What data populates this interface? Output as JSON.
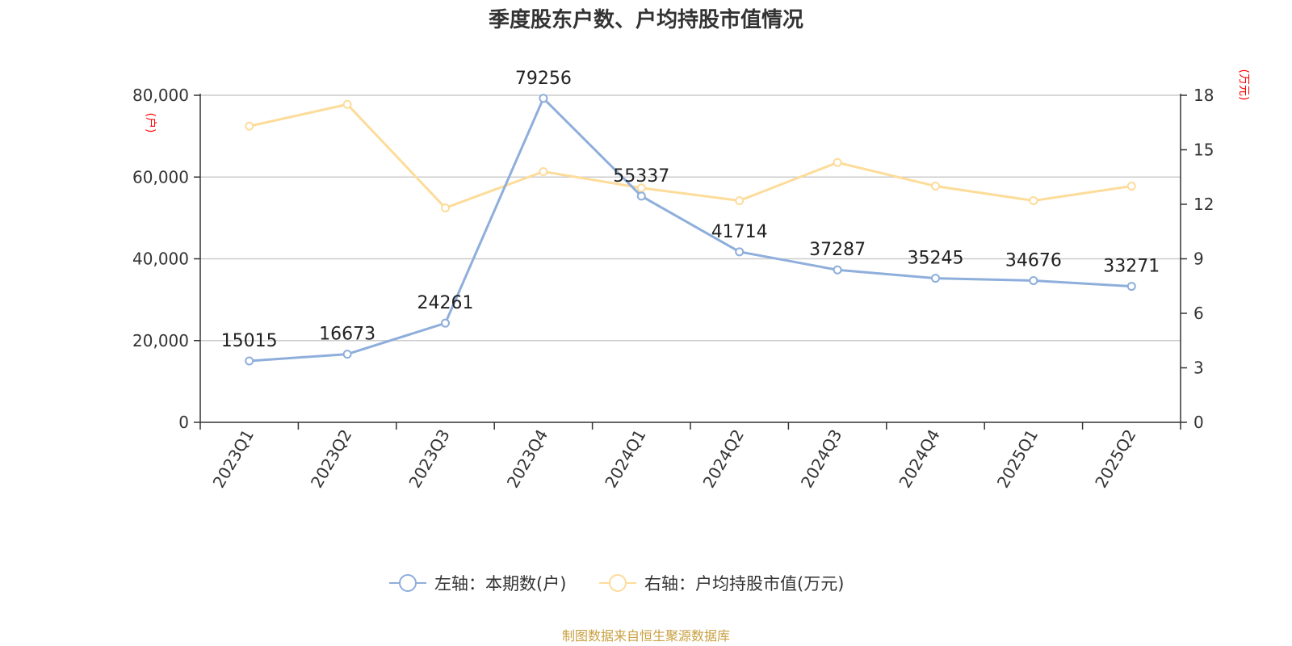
{
  "chart_data": {
    "type": "line",
    "title": "季度股东户数、户均持股市值情况",
    "categories": [
      "2023Q1",
      "2023Q2",
      "2023Q3",
      "2023Q4",
      "2024Q1",
      "2024Q2",
      "2024Q3",
      "2024Q4",
      "2025Q1",
      "2025Q2"
    ],
    "y_left": {
      "label": "(户)",
      "range": [
        0,
        80000
      ],
      "ticks": [
        "0",
        "20,000",
        "40,000",
        "60,000",
        "80,000"
      ]
    },
    "y_right": {
      "label": "(万元)",
      "range": [
        0,
        18
      ],
      "ticks": [
        "0",
        "3",
        "6",
        "9",
        "12",
        "15",
        "18"
      ]
    },
    "series": [
      {
        "name": "左轴：本期数(户)",
        "axis": "left",
        "color": "#8eaedb",
        "values": [
          15015,
          16673,
          24261,
          79256,
          55337,
          41714,
          37287,
          35245,
          34676,
          33271
        ],
        "labels": [
          "15015",
          "16673",
          "24261",
          "79256",
          "55337",
          "41714",
          "37287",
          "35245",
          "34676",
          "33271"
        ]
      },
      {
        "name": "右轴：户均持股市值(万元)",
        "axis": "right",
        "color": "#fddc9a",
        "values": [
          16.3,
          17.5,
          11.8,
          13.8,
          12.9,
          12.2,
          14.3,
          13.0,
          12.2,
          13.0
        ]
      }
    ],
    "grid": true,
    "legend_position": "bottom-center"
  },
  "footer": {
    "source": "制图数据来自恒生聚源数据库"
  }
}
